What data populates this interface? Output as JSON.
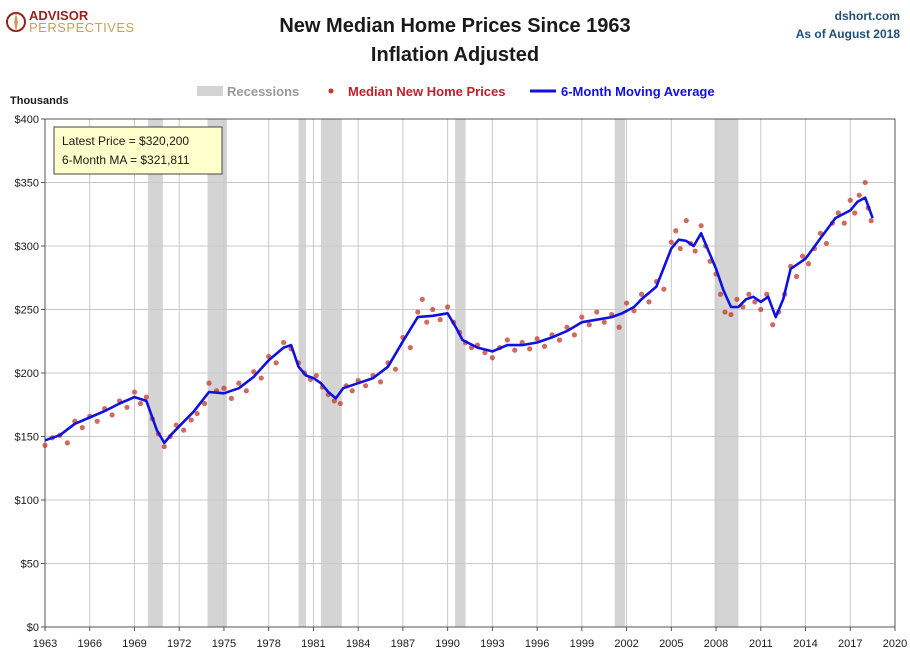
{
  "header": {
    "logo_line1": "ADVISOR",
    "logo_line2": "PERSPECTIVES",
    "title_line1": "New Median Home Prices Since 1963",
    "title_line2": "Inflation Adjusted",
    "source": "dshort.com",
    "as_of": "As of August 2018"
  },
  "annotation": {
    "latest": "Latest Price = $320,200",
    "ma": "6-Month MA = $321,811"
  },
  "colors": {
    "recession": "#d4d4d4",
    "price_dots": "#c0392b",
    "moving_average": "#1010e0",
    "grid": "#c8c8c8",
    "note_bg": "#ffffcc"
  },
  "chart_data": {
    "type": "line",
    "title": "New Median Home Prices Since 1963 Inflation Adjusted",
    "ylabel": "Thousands",
    "xlim": [
      1963,
      2020
    ],
    "ylim": [
      0,
      400
    ],
    "x_ticks": [
      "1963",
      "1966",
      "1969",
      "1972",
      "1975",
      "1978",
      "1981",
      "1984",
      "1987",
      "1990",
      "1993",
      "1996",
      "1999",
      "2002",
      "2005",
      "2008",
      "2011",
      "2014",
      "2017",
      "2020"
    ],
    "y_ticks": [
      "$0",
      "$50",
      "$100",
      "$150",
      "$200",
      "$250",
      "$300",
      "$350",
      "$400"
    ],
    "grid": true,
    "legend_position": "top",
    "legend": [
      {
        "name": "Recessions",
        "kind": "band"
      },
      {
        "name": "Median New Home Prices",
        "kind": "dots"
      },
      {
        "name": "6-Month Moving Average",
        "kind": "line"
      }
    ],
    "recessions": [
      [
        1969.9,
        1970.9
      ],
      [
        1973.9,
        1975.2
      ],
      [
        1980.0,
        1980.5
      ],
      [
        1981.5,
        1982.9
      ],
      [
        1990.5,
        1991.2
      ],
      [
        2001.2,
        2001.9
      ],
      [
        2007.9,
        2009.5
      ]
    ],
    "series": [
      {
        "name": "6-Month Moving Average",
        "kind": "line",
        "points": [
          [
            1963.0,
            147
          ],
          [
            1964.0,
            151
          ],
          [
            1965.0,
            160
          ],
          [
            1966.0,
            165
          ],
          [
            1967.0,
            170
          ],
          [
            1968.0,
            176
          ],
          [
            1969.0,
            181
          ],
          [
            1969.8,
            178
          ],
          [
            1970.5,
            155
          ],
          [
            1971.0,
            145
          ],
          [
            1971.5,
            152
          ],
          [
            1972.0,
            158
          ],
          [
            1973.0,
            170
          ],
          [
            1974.0,
            185
          ],
          [
            1975.0,
            184
          ],
          [
            1976.0,
            188
          ],
          [
            1977.0,
            197
          ],
          [
            1978.0,
            210
          ],
          [
            1979.0,
            220
          ],
          [
            1979.5,
            222
          ],
          [
            1980.0,
            205
          ],
          [
            1980.5,
            198
          ],
          [
            1981.0,
            196
          ],
          [
            1981.5,
            192
          ],
          [
            1982.0,
            185
          ],
          [
            1982.5,
            180
          ],
          [
            1983.0,
            188
          ],
          [
            1984.0,
            192
          ],
          [
            1985.0,
            196
          ],
          [
            1986.0,
            205
          ],
          [
            1987.0,
            225
          ],
          [
            1988.0,
            244
          ],
          [
            1989.0,
            245
          ],
          [
            1990.0,
            247
          ],
          [
            1990.6,
            235
          ],
          [
            1991.0,
            226
          ],
          [
            1992.0,
            220
          ],
          [
            1993.0,
            217
          ],
          [
            1994.0,
            222
          ],
          [
            1995.0,
            222
          ],
          [
            1996.0,
            224
          ],
          [
            1997.0,
            228
          ],
          [
            1998.0,
            233
          ],
          [
            1999.0,
            240
          ],
          [
            2000.0,
            242
          ],
          [
            2001.0,
            244
          ],
          [
            2001.7,
            247
          ],
          [
            2002.5,
            252
          ],
          [
            2003.0,
            258
          ],
          [
            2004.0,
            268
          ],
          [
            2005.0,
            298
          ],
          [
            2005.5,
            305
          ],
          [
            2006.0,
            304
          ],
          [
            2006.5,
            300
          ],
          [
            2007.0,
            310
          ],
          [
            2007.5,
            296
          ],
          [
            2008.0,
            282
          ],
          [
            2008.5,
            265
          ],
          [
            2009.0,
            252
          ],
          [
            2009.5,
            252
          ],
          [
            2010.0,
            258
          ],
          [
            2010.5,
            260
          ],
          [
            2011.0,
            256
          ],
          [
            2011.5,
            260
          ],
          [
            2012.0,
            244
          ],
          [
            2012.5,
            258
          ],
          [
            2013.0,
            282
          ],
          [
            2014.0,
            290
          ],
          [
            2015.0,
            306
          ],
          [
            2016.0,
            322
          ],
          [
            2017.0,
            328
          ],
          [
            2017.5,
            335
          ],
          [
            2018.0,
            338
          ],
          [
            2018.5,
            322
          ]
        ]
      },
      {
        "name": "Median New Home Prices",
        "kind": "dots",
        "points": [
          [
            1963.0,
            143
          ],
          [
            1963.5,
            149
          ],
          [
            1964.0,
            151
          ],
          [
            1964.5,
            145
          ],
          [
            1965.0,
            162
          ],
          [
            1965.5,
            157
          ],
          [
            1966.0,
            166
          ],
          [
            1966.5,
            162
          ],
          [
            1967.0,
            172
          ],
          [
            1967.5,
            167
          ],
          [
            1968.0,
            178
          ],
          [
            1968.5,
            173
          ],
          [
            1969.0,
            185
          ],
          [
            1969.4,
            176
          ],
          [
            1969.8,
            181
          ],
          [
            1970.2,
            164
          ],
          [
            1970.6,
            152
          ],
          [
            1971.0,
            142
          ],
          [
            1971.4,
            150
          ],
          [
            1971.8,
            159
          ],
          [
            1972.3,
            155
          ],
          [
            1972.8,
            163
          ],
          [
            1973.2,
            168
          ],
          [
            1973.7,
            176
          ],
          [
            1974.0,
            192
          ],
          [
            1974.5,
            186
          ],
          [
            1975.0,
            188
          ],
          [
            1975.5,
            180
          ],
          [
            1976.0,
            192
          ],
          [
            1976.5,
            186
          ],
          [
            1977.0,
            201
          ],
          [
            1977.5,
            196
          ],
          [
            1978.0,
            213
          ],
          [
            1978.5,
            208
          ],
          [
            1979.0,
            224
          ],
          [
            1979.5,
            219
          ],
          [
            1980.0,
            208
          ],
          [
            1980.4,
            200
          ],
          [
            1980.8,
            195
          ],
          [
            1981.2,
            198
          ],
          [
            1981.6,
            189
          ],
          [
            1982.0,
            183
          ],
          [
            1982.4,
            178
          ],
          [
            1982.8,
            176
          ],
          [
            1983.2,
            190
          ],
          [
            1983.6,
            186
          ],
          [
            1984.0,
            194
          ],
          [
            1984.5,
            190
          ],
          [
            1985.0,
            198
          ],
          [
            1985.5,
            193
          ],
          [
            1986.0,
            208
          ],
          [
            1986.5,
            203
          ],
          [
            1987.0,
            228
          ],
          [
            1987.5,
            220
          ],
          [
            1988.0,
            248
          ],
          [
            1988.3,
            258
          ],
          [
            1988.6,
            240
          ],
          [
            1989.0,
            250
          ],
          [
            1989.5,
            242
          ],
          [
            1990.0,
            252
          ],
          [
            1990.4,
            240
          ],
          [
            1990.8,
            232
          ],
          [
            1991.2,
            224
          ],
          [
            1991.6,
            220
          ],
          [
            1992.0,
            222
          ],
          [
            1992.5,
            216
          ],
          [
            1993.0,
            212
          ],
          [
            1993.5,
            220
          ],
          [
            1994.0,
            226
          ],
          [
            1994.5,
            218
          ],
          [
            1995.0,
            224
          ],
          [
            1995.5,
            219
          ],
          [
            1996.0,
            227
          ],
          [
            1996.5,
            221
          ],
          [
            1997.0,
            230
          ],
          [
            1997.5,
            226
          ],
          [
            1998.0,
            236
          ],
          [
            1998.5,
            230
          ],
          [
            1999.0,
            244
          ],
          [
            1999.5,
            238
          ],
          [
            2000.0,
            248
          ],
          [
            2000.5,
            240
          ],
          [
            2001.0,
            246
          ],
          [
            2001.5,
            236
          ],
          [
            2002.0,
            255
          ],
          [
            2002.5,
            249
          ],
          [
            2003.0,
            262
          ],
          [
            2003.5,
            256
          ],
          [
            2004.0,
            272
          ],
          [
            2004.5,
            266
          ],
          [
            2005.0,
            303
          ],
          [
            2005.3,
            312
          ],
          [
            2005.6,
            298
          ],
          [
            2006.0,
            320
          ],
          [
            2006.3,
            302
          ],
          [
            2006.6,
            296
          ],
          [
            2007.0,
            316
          ],
          [
            2007.3,
            300
          ],
          [
            2007.6,
            288
          ],
          [
            2008.0,
            278
          ],
          [
            2008.3,
            262
          ],
          [
            2008.6,
            248
          ],
          [
            2009.0,
            246
          ],
          [
            2009.4,
            258
          ],
          [
            2009.8,
            252
          ],
          [
            2010.2,
            262
          ],
          [
            2010.6,
            256
          ],
          [
            2011.0,
            250
          ],
          [
            2011.4,
            262
          ],
          [
            2011.8,
            238
          ],
          [
            2012.2,
            248
          ],
          [
            2012.6,
            262
          ],
          [
            2013.0,
            284
          ],
          [
            2013.4,
            276
          ],
          [
            2013.8,
            292
          ],
          [
            2014.2,
            286
          ],
          [
            2014.6,
            298
          ],
          [
            2015.0,
            310
          ],
          [
            2015.4,
            302
          ],
          [
            2015.8,
            318
          ],
          [
            2016.2,
            326
          ],
          [
            2016.6,
            318
          ],
          [
            2017.0,
            336
          ],
          [
            2017.3,
            326
          ],
          [
            2017.6,
            340
          ],
          [
            2018.0,
            350
          ],
          [
            2018.2,
            330
          ],
          [
            2018.4,
            320
          ]
        ]
      }
    ]
  }
}
